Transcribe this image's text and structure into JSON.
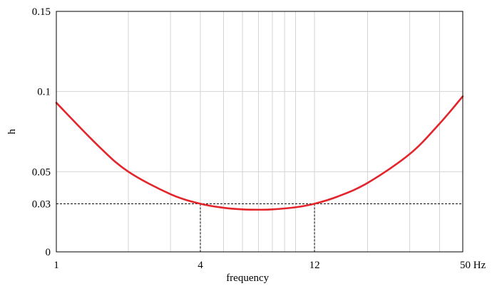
{
  "chart_data": {
    "type": "line",
    "x_scale": "log",
    "xlim": [
      1,
      50
    ],
    "ylim": [
      0,
      0.15
    ],
    "xlabel": "frequency",
    "ylabel": "h",
    "x_ticks": [
      {
        "value": 1,
        "label": "1"
      },
      {
        "value": 4,
        "label": "4"
      },
      {
        "value": 12,
        "label": "12"
      },
      {
        "value": 50,
        "label": "50 Hz"
      }
    ],
    "y_ticks": [
      {
        "value": 0,
        "label": "0"
      },
      {
        "value": 0.03,
        "label": "0.03"
      },
      {
        "value": 0.05,
        "label": "0.05"
      },
      {
        "value": 0.1,
        "label": "0.1"
      },
      {
        "value": 0.15,
        "label": "0.15"
      }
    ],
    "x_gridlines": [
      1,
      2,
      3,
      4,
      5,
      6,
      7,
      8,
      9,
      10,
      12,
      20,
      30,
      40,
      50
    ],
    "grid": true,
    "series": [
      {
        "color": "#e3242b",
        "x": [
          1,
          1.5,
          2,
          3,
          4,
          5,
          6,
          7,
          8,
          10,
          12,
          15,
          20,
          30,
          40,
          50
        ],
        "y": [
          0.093,
          0.066,
          0.05,
          0.036,
          0.03,
          0.0275,
          0.0265,
          0.0263,
          0.0265,
          0.0278,
          0.03,
          0.0345,
          0.043,
          0.061,
          0.08,
          0.097
        ]
      }
    ],
    "reference_lines": {
      "color": "#000000",
      "horizontal_y": 0.03,
      "vertical_x": [
        4,
        12
      ]
    }
  }
}
